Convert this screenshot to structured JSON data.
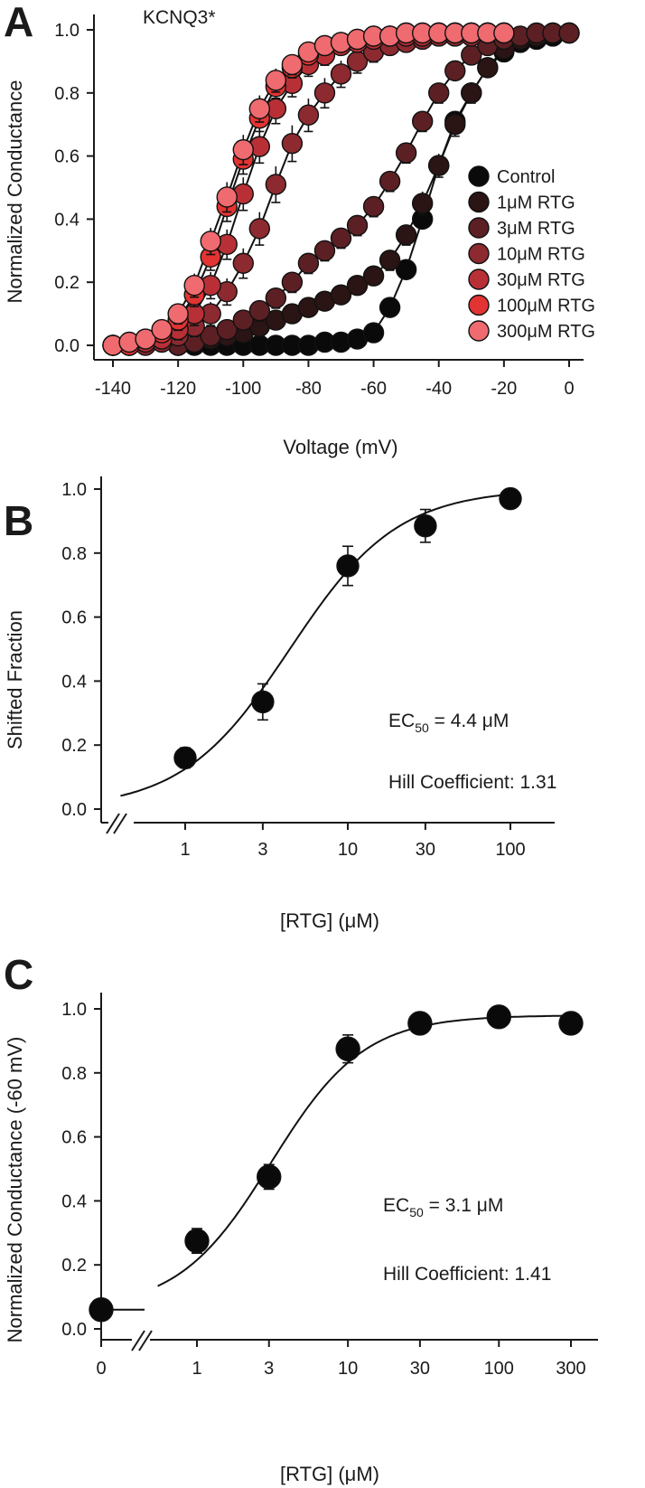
{
  "panels": {
    "A": {
      "letter": "A"
    },
    "B": {
      "letter": "B"
    },
    "C": {
      "letter": "C"
    }
  },
  "chart_data": [
    {
      "type": "scatter",
      "panel": "A",
      "title": "KCNQ3*",
      "xlabel": "Voltage (mV)",
      "ylabel": "Normalized Conductance",
      "xlim": [
        -145,
        5
      ],
      "ylim": [
        -0.03,
        1.05
      ],
      "xticks": [
        "-140",
        "-120",
        "-100",
        "-80",
        "-60",
        "-40",
        "-20",
        "0"
      ],
      "yticks": [
        "0.0",
        "0.2",
        "0.4",
        "0.6",
        "0.8",
        "1.0"
      ],
      "legend_position": "right",
      "series": [
        {
          "name": "Control",
          "color": "#0a0a0a",
          "x": [
            -120,
            -115,
            -110,
            -105,
            -100,
            -95,
            -90,
            -85,
            -80,
            -75,
            -70,
            -65,
            -60,
            -55,
            -50,
            -45,
            -40,
            -35,
            -30,
            -25,
            -20,
            -15,
            -10,
            -5,
            0
          ],
          "y": [
            0.0,
            0.0,
            0.0,
            0.0,
            0.0,
            0.0,
            0.0,
            0.0,
            0.0,
            0.01,
            0.01,
            0.02,
            0.04,
            0.12,
            0.24,
            0.4,
            0.57,
            0.71,
            0.8,
            0.88,
            0.93,
            0.96,
            0.97,
            0.98,
            0.99
          ],
          "err": [
            0,
            0,
            0,
            0,
            0,
            0,
            0,
            0,
            0,
            0,
            0,
            0,
            0.01,
            0.01,
            0.01,
            0.01,
            0.01,
            0.01,
            0.01,
            0.01,
            0.01,
            0.01,
            0.01,
            0.01,
            0.01
          ]
        },
        {
          "name": "1μM RTG",
          "color": "#2a1414",
          "x": [
            -120,
            -115,
            -110,
            -105,
            -100,
            -95,
            -90,
            -85,
            -80,
            -75,
            -70,
            -65,
            -60,
            -55,
            -50,
            -45,
            -40,
            -35,
            -30,
            -25,
            -20,
            -15,
            -10,
            -5,
            0
          ],
          "y": [
            0.0,
            0.01,
            0.02,
            0.03,
            0.04,
            0.06,
            0.08,
            0.1,
            0.12,
            0.14,
            0.16,
            0.19,
            0.22,
            0.27,
            0.35,
            0.45,
            0.57,
            0.7,
            0.8,
            0.88,
            0.94,
            0.97,
            0.98,
            0.99,
            0.99
          ],
          "err": [
            0.005,
            0.005,
            0.01,
            0.01,
            0.01,
            0.01,
            0.01,
            0.01,
            0.01,
            0.01,
            0.01,
            0.01,
            0.01,
            0.015,
            0.015,
            0.02,
            0.02,
            0.02,
            0.015,
            0.01,
            0.01,
            0.005,
            0.005,
            0.005,
            0.005
          ]
        },
        {
          "name": "3μM RTG",
          "color": "#5c2024",
          "x": [
            -120,
            -115,
            -110,
            -105,
            -100,
            -95,
            -90,
            -85,
            -80,
            -75,
            -70,
            -65,
            -60,
            -55,
            -50,
            -45,
            -40,
            -35,
            -30,
            -25,
            -20,
            -15,
            -10,
            -5,
            0
          ],
          "y": [
            0.0,
            0.01,
            0.03,
            0.05,
            0.08,
            0.11,
            0.15,
            0.2,
            0.26,
            0.3,
            0.34,
            0.38,
            0.44,
            0.52,
            0.61,
            0.71,
            0.8,
            0.87,
            0.92,
            0.95,
            0.97,
            0.98,
            0.99,
            0.99,
            0.99
          ],
          "err": [
            0.005,
            0.01,
            0.01,
            0.01,
            0.01,
            0.015,
            0.015,
            0.015,
            0.015,
            0.015,
            0.015,
            0.015,
            0.015,
            0.015,
            0.015,
            0.015,
            0.015,
            0.01,
            0.01,
            0.01,
            0.005,
            0.005,
            0.005,
            0.005,
            0.005
          ]
        },
        {
          "name": "10μM RTG",
          "color": "#8c2a30",
          "x": [
            -140,
            -135,
            -130,
            -125,
            -120,
            -115,
            -110,
            -105,
            -100,
            -95,
            -90,
            -85,
            -80,
            -75,
            -70,
            -65,
            -60,
            -55,
            -50,
            -45,
            -40,
            -35,
            -30,
            -25,
            -20
          ],
          "y": [
            0.0,
            0.0,
            0.0,
            0.01,
            0.03,
            0.06,
            0.1,
            0.17,
            0.26,
            0.37,
            0.51,
            0.64,
            0.73,
            0.8,
            0.86,
            0.9,
            0.93,
            0.95,
            0.96,
            0.97,
            0.98,
            0.98,
            0.98,
            0.99,
            0.99
          ],
          "err": [
            0.005,
            0.005,
            0.005,
            0.01,
            0.01,
            0.015,
            0.02,
            0.025,
            0.03,
            0.035,
            0.04,
            0.04,
            0.035,
            0.03,
            0.025,
            0.02,
            0.015,
            0.01,
            0.01,
            0.01,
            0.01,
            0.005,
            0.005,
            0.005,
            0.005
          ]
        },
        {
          "name": "30μM RTG",
          "color": "#b83036",
          "x": [
            -140,
            -135,
            -130,
            -125,
            -120,
            -115,
            -110,
            -105,
            -100,
            -95,
            -90,
            -85,
            -80,
            -75,
            -70,
            -65,
            -60,
            -55,
            -50,
            -45,
            -40,
            -35,
            -30,
            -25,
            -20
          ],
          "y": [
            0.0,
            0.0,
            0.01,
            0.02,
            0.05,
            0.1,
            0.19,
            0.32,
            0.48,
            0.63,
            0.75,
            0.83,
            0.89,
            0.92,
            0.95,
            0.96,
            0.97,
            0.98,
            0.98,
            0.98,
            0.99,
            0.99,
            0.99,
            0.99,
            0.99
          ],
          "err": [
            0.005,
            0.005,
            0.01,
            0.01,
            0.015,
            0.02,
            0.025,
            0.03,
            0.035,
            0.035,
            0.03,
            0.025,
            0.02,
            0.015,
            0.01,
            0.01,
            0.01,
            0.005,
            0.005,
            0.005,
            0.005,
            0.005,
            0.005,
            0.005,
            0.005
          ]
        },
        {
          "name": "100μM RTG",
          "color": "#e23432",
          "x": [
            -140,
            -135,
            -130,
            -125,
            -120,
            -115,
            -110,
            -105,
            -100,
            -95,
            -90,
            -85,
            -80,
            -75,
            -70,
            -65,
            -60,
            -55,
            -50,
            -45,
            -40,
            -35,
            -30,
            -25,
            -20
          ],
          "y": [
            0.0,
            0.0,
            0.02,
            0.04,
            0.08,
            0.16,
            0.28,
            0.44,
            0.59,
            0.72,
            0.82,
            0.88,
            0.92,
            0.95,
            0.96,
            0.97,
            0.98,
            0.98,
            0.99,
            0.99,
            0.99,
            0.99,
            0.99,
            0.99,
            0.99
          ],
          "err": [
            0.005,
            0.005,
            0.01,
            0.01,
            0.015,
            0.02,
            0.025,
            0.03,
            0.03,
            0.025,
            0.02,
            0.015,
            0.01,
            0.01,
            0.01,
            0.005,
            0.005,
            0.005,
            0.005,
            0.005,
            0.005,
            0.005,
            0.005,
            0.005,
            0.005
          ]
        },
        {
          "name": "300μM RTG",
          "color": "#ef6b6f",
          "x": [
            -140,
            -135,
            -130,
            -125,
            -120,
            -115,
            -110,
            -105,
            -100,
            -95,
            -90,
            -85,
            -80,
            -75,
            -70,
            -65,
            -60,
            -55,
            -50,
            -45,
            -40,
            -35,
            -30,
            -25,
            -20
          ],
          "y": [
            0.0,
            0.01,
            0.02,
            0.05,
            0.1,
            0.19,
            0.33,
            0.47,
            0.62,
            0.75,
            0.84,
            0.89,
            0.93,
            0.95,
            0.96,
            0.97,
            0.98,
            0.98,
            0.99,
            0.99,
            0.99,
            0.99,
            0.99,
            0.99,
            0.99
          ],
          "err": [
            0.005,
            0.005,
            0.01,
            0.01,
            0.015,
            0.02,
            0.025,
            0.03,
            0.03,
            0.025,
            0.02,
            0.015,
            0.01,
            0.01,
            0.01,
            0.005,
            0.005,
            0.005,
            0.005,
            0.005,
            0.005,
            0.005,
            0.005,
            0.005,
            0.005
          ]
        }
      ]
    },
    {
      "type": "scatter",
      "panel": "B",
      "xlabel": "[RTG] (μM)",
      "ylabel": "Shifted Fraction",
      "x_scale": "log",
      "xticks": [
        "1",
        "3",
        "10",
        "30",
        "100"
      ],
      "yticks": [
        "0.0",
        "0.2",
        "0.4",
        "0.6",
        "0.8",
        "1.0"
      ],
      "ylim": [
        -0.05,
        1.05
      ],
      "axis_break": true,
      "series": [
        {
          "x": [
            1,
            3,
            10,
            30,
            100
          ],
          "y": [
            0.16,
            0.335,
            0.76,
            0.885,
            0.97
          ],
          "err": [
            0.02,
            0.045,
            0.05,
            0.04,
            0.01
          ]
        }
      ],
      "fit": {
        "model": "hill",
        "ec50": 4.4,
        "hill": 1.31
      },
      "annotations": {
        "ec50_prefix": "EC",
        "ec50_sub": "50",
        "ec50_value": " = 4.4 μM",
        "hill_text": "Hill Coefficient: 1.31"
      }
    },
    {
      "type": "scatter",
      "panel": "C",
      "xlabel": "[RTG] (μM)",
      "ylabel": "Normalized Conductance (-60 mV)",
      "x_scale": "log",
      "xticks": [
        "0",
        "1",
        "3",
        "10",
        "30",
        "100",
        "300"
      ],
      "yticks": [
        "0.0",
        "0.2",
        "0.4",
        "0.6",
        "0.8",
        "1.0"
      ],
      "ylim": [
        -0.02,
        1.08
      ],
      "axis_break": true,
      "control_point": {
        "x": 0,
        "y": 0.06
      },
      "series": [
        {
          "x": [
            1,
            3,
            10,
            30,
            100,
            300
          ],
          "y": [
            0.275,
            0.475,
            0.875,
            0.955,
            0.975,
            0.955
          ],
          "err": [
            0.03,
            0.03,
            0.035,
            0.015,
            0.02,
            0.015
          ]
        }
      ],
      "fit": {
        "model": "hill",
        "ec50": 3.1,
        "hill": 1.41
      },
      "annotations": {
        "ec50_prefix": "EC",
        "ec50_sub": "50",
        "ec50_value": " = 3.1 μM",
        "hill_text": "Hill Coefficient: 1.41"
      }
    }
  ]
}
